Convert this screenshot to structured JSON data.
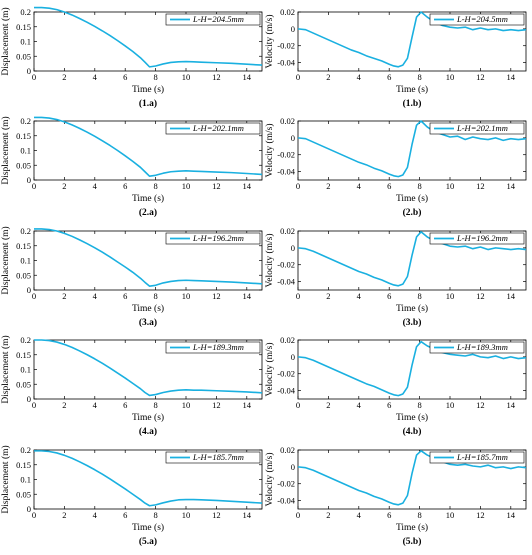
{
  "figure": {
    "panels": [
      {
        "id": "1.a",
        "caption": "(1.a)"
      },
      {
        "id": "1.b",
        "caption": "(1.b)"
      },
      {
        "id": "2.a",
        "caption": "(2.a)"
      },
      {
        "id": "2.b",
        "caption": "(2.b)"
      },
      {
        "id": "3.a",
        "caption": "(3.a)"
      },
      {
        "id": "3.b",
        "caption": "(3.b)"
      },
      {
        "id": "4.a",
        "caption": "(4.a)"
      },
      {
        "id": "4.b",
        "caption": "(4.b)"
      },
      {
        "id": "5.a",
        "caption": "(5.a)"
      },
      {
        "id": "5.b",
        "caption": "(5.b)"
      }
    ]
  },
  "colors": {
    "series": "#1ab0e0",
    "axis": "#000000",
    "background": "#ffffff"
  },
  "chart_data": [
    {
      "panel": "1.a",
      "type": "line",
      "xlabel": "Time (s)",
      "ylabel": "Displacement (m)",
      "xlim": [
        0,
        15
      ],
      "ylim": [
        0,
        0.2
      ],
      "xticks": [
        "0",
        "2",
        "4",
        "6",
        "8",
        "10",
        "12",
        "14"
      ],
      "yticks": [
        "0",
        "0.05",
        "0.1",
        "0.15",
        "0.2"
      ],
      "legend": {
        "placement": "top-right",
        "entries": [
          "L-H=204.5mm"
        ]
      },
      "grid": false,
      "series": [
        {
          "name": "L-H=204.5mm",
          "x": [
            0,
            0.5,
            1,
            1.5,
            2,
            2.5,
            3,
            3.5,
            4,
            4.5,
            5,
            5.5,
            6,
            6.5,
            7,
            7.3,
            7.6,
            8,
            8.5,
            9,
            9.5,
            10,
            10.5,
            11,
            12,
            13,
            14,
            15
          ],
          "y": [
            0.215,
            0.215,
            0.213,
            0.208,
            0.2,
            0.19,
            0.178,
            0.165,
            0.151,
            0.136,
            0.12,
            0.103,
            0.085,
            0.066,
            0.045,
            0.03,
            0.014,
            0.017,
            0.024,
            0.029,
            0.031,
            0.032,
            0.031,
            0.03,
            0.028,
            0.026,
            0.023,
            0.02
          ]
        }
      ]
    },
    {
      "panel": "1.b",
      "type": "line",
      "xlabel": "Time (s)",
      "ylabel": "Velocity (m/s)",
      "xlim": [
        0,
        15
      ],
      "ylim": [
        -0.05,
        0.02
      ],
      "xticks": [
        "0",
        "2",
        "4",
        "6",
        "8",
        "10",
        "12",
        "14"
      ],
      "yticks": [
        "-0.04",
        "-0.02",
        "0",
        "0.02"
      ],
      "legend": {
        "placement": "top-right",
        "entries": [
          "L-H=204.5mm"
        ]
      },
      "grid": false,
      "series": [
        {
          "name": "L-H=204.5mm",
          "x": [
            0,
            0.5,
            1,
            1.5,
            2,
            2.5,
            3,
            3.5,
            4,
            4.5,
            5,
            5.5,
            6,
            6.3,
            6.6,
            6.9,
            7.2,
            7.5,
            7.8,
            8.1,
            8.5,
            9,
            9.5,
            10,
            10.5,
            11,
            11.5,
            12,
            12.5,
            13,
            13.5,
            14,
            14.5,
            15
          ],
          "y": [
            0,
            -0.001,
            -0.005,
            -0.009,
            -0.013,
            -0.017,
            -0.021,
            -0.025,
            -0.028,
            -0.032,
            -0.035,
            -0.038,
            -0.042,
            -0.044,
            -0.045,
            -0.043,
            -0.035,
            -0.01,
            0.014,
            0.02,
            0.014,
            0.008,
            0.004,
            0.002,
            0.001,
            0.002,
            -0.001,
            0.001,
            -0.001,
            0,
            -0.002,
            -0.001,
            -0.002,
            -0.001
          ]
        }
      ]
    },
    {
      "panel": "2.a",
      "type": "line",
      "xlabel": "Time (s)",
      "ylabel": "Displacement (m)",
      "xlim": [
        0,
        15
      ],
      "ylim": [
        0,
        0.2
      ],
      "xticks": [
        "0",
        "2",
        "4",
        "6",
        "8",
        "10",
        "12",
        "14"
      ],
      "yticks": [
        "0",
        "0.05",
        "0.1",
        "0.15",
        "0.2"
      ],
      "legend": {
        "placement": "top-right",
        "entries": [
          "L-H=202.1mm"
        ]
      },
      "grid": false,
      "series": [
        {
          "name": "L-H=202.1mm",
          "x": [
            0,
            0.5,
            1,
            1.5,
            2,
            2.5,
            3,
            3.5,
            4,
            4.5,
            5,
            5.5,
            6,
            6.5,
            7,
            7.3,
            7.6,
            8,
            8.5,
            9,
            9.5,
            10,
            10.5,
            11,
            12,
            13,
            14,
            15
          ],
          "y": [
            0.212,
            0.212,
            0.21,
            0.205,
            0.197,
            0.187,
            0.175,
            0.162,
            0.148,
            0.133,
            0.117,
            0.1,
            0.082,
            0.063,
            0.043,
            0.028,
            0.013,
            0.016,
            0.023,
            0.028,
            0.03,
            0.031,
            0.03,
            0.029,
            0.027,
            0.025,
            0.022,
            0.019
          ]
        }
      ]
    },
    {
      "panel": "2.b",
      "type": "line",
      "xlabel": "Time (s)",
      "ylabel": "Velocity (m/s)",
      "xlim": [
        0,
        15
      ],
      "ylim": [
        -0.05,
        0.02
      ],
      "xticks": [
        "0",
        "2",
        "4",
        "6",
        "8",
        "10",
        "12",
        "14"
      ],
      "yticks": [
        "-0.04",
        "-0.02",
        "0",
        "0.02"
      ],
      "legend": {
        "placement": "top-right",
        "entries": [
          "L-H=202.1mm"
        ]
      },
      "grid": false,
      "series": [
        {
          "name": "L-H=202.1mm",
          "x": [
            0,
            0.5,
            1,
            1.5,
            2,
            2.5,
            3,
            3.5,
            4,
            4.5,
            5,
            5.5,
            6,
            6.3,
            6.6,
            6.9,
            7.2,
            7.5,
            7.8,
            8.1,
            8.5,
            9,
            9.5,
            10,
            10.5,
            11,
            11.5,
            12,
            12.5,
            13,
            13.5,
            14,
            14.5,
            15
          ],
          "y": [
            0,
            -0.001,
            -0.005,
            -0.009,
            -0.013,
            -0.017,
            -0.021,
            -0.025,
            -0.029,
            -0.032,
            -0.036,
            -0.039,
            -0.043,
            -0.045,
            -0.046,
            -0.044,
            -0.035,
            -0.008,
            0.015,
            0.02,
            0.013,
            0.007,
            0.004,
            0.001,
            0.002,
            -0.002,
            0.001,
            -0.001,
            -0.002,
            0,
            -0.003,
            -0.001,
            -0.002,
            -0.001
          ]
        }
      ]
    },
    {
      "panel": "3.a",
      "type": "line",
      "xlabel": "Time (s)",
      "ylabel": "Displacement (m)",
      "xlim": [
        0,
        15
      ],
      "ylim": [
        0,
        0.2
      ],
      "xticks": [
        "0",
        "2",
        "4",
        "6",
        "8",
        "10",
        "12",
        "14"
      ],
      "yticks": [
        "0",
        "0.05",
        "0.1",
        "0.15",
        "0.2"
      ],
      "legend": {
        "placement": "top-right",
        "entries": [
          "L-H=196.2mm"
        ]
      },
      "grid": false,
      "series": [
        {
          "name": "L-H=196.2mm",
          "x": [
            0,
            0.5,
            1,
            1.5,
            2,
            2.5,
            3,
            3.5,
            4,
            4.5,
            5,
            5.5,
            6,
            6.5,
            7,
            7.3,
            7.6,
            8,
            8.5,
            9,
            9.5,
            10,
            10.5,
            11,
            12,
            13,
            14,
            15
          ],
          "y": [
            0.207,
            0.207,
            0.205,
            0.2,
            0.192,
            0.182,
            0.17,
            0.157,
            0.143,
            0.128,
            0.112,
            0.095,
            0.078,
            0.06,
            0.04,
            0.026,
            0.013,
            0.016,
            0.024,
            0.029,
            0.032,
            0.033,
            0.032,
            0.031,
            0.029,
            0.027,
            0.024,
            0.021
          ]
        }
      ]
    },
    {
      "panel": "3.b",
      "type": "line",
      "xlabel": "Time (s)",
      "ylabel": "Velocity (m/s)",
      "xlim": [
        0,
        15
      ],
      "ylim": [
        -0.05,
        0.02
      ],
      "xticks": [
        "0",
        "2",
        "4",
        "6",
        "8",
        "10",
        "12",
        "14"
      ],
      "yticks": [
        "-0.04",
        "-0.02",
        "0",
        "0.02"
      ],
      "legend": {
        "placement": "top-right",
        "entries": [
          "L-H=196.2mm"
        ]
      },
      "grid": false,
      "series": [
        {
          "name": "L-H=196.2mm",
          "x": [
            0,
            0.5,
            1,
            1.5,
            2,
            2.5,
            3,
            3.5,
            4,
            4.5,
            5,
            5.5,
            6,
            6.3,
            6.6,
            6.9,
            7.2,
            7.5,
            7.8,
            8.1,
            8.5,
            9,
            9.5,
            10,
            10.5,
            11,
            11.5,
            12,
            12.5,
            13,
            13.5,
            14,
            14.5,
            15
          ],
          "y": [
            0,
            -0.001,
            -0.004,
            -0.008,
            -0.012,
            -0.016,
            -0.02,
            -0.024,
            -0.028,
            -0.031,
            -0.035,
            -0.038,
            -0.042,
            -0.044,
            -0.045,
            -0.043,
            -0.034,
            -0.009,
            0.013,
            0.019,
            0.013,
            0.008,
            0.005,
            0.002,
            0.001,
            0.002,
            -0.001,
            0.001,
            -0.002,
            0,
            -0.001,
            -0.002,
            -0.001,
            -0.002
          ]
        }
      ]
    },
    {
      "panel": "4.a",
      "type": "line",
      "xlabel": "Time (s)",
      "ylabel": "Displacement (m)",
      "xlim": [
        0,
        15
      ],
      "ylim": [
        0,
        0.2
      ],
      "xticks": [
        "0",
        "2",
        "4",
        "6",
        "8",
        "10",
        "12",
        "14"
      ],
      "yticks": [
        "0",
        "0.05",
        "0.1",
        "0.15",
        "0.2"
      ],
      "legend": {
        "placement": "top-right",
        "entries": [
          "L-H=189.3mm"
        ]
      },
      "grid": false,
      "series": [
        {
          "name": "L-H=189.3mm",
          "x": [
            0,
            0.5,
            1,
            1.5,
            2,
            2.5,
            3,
            3.5,
            4,
            4.5,
            5,
            5.5,
            6,
            6.5,
            7,
            7.3,
            7.6,
            8,
            8.5,
            9,
            9.5,
            10,
            10.5,
            11,
            12,
            13,
            14,
            15
          ],
          "y": [
            0.2,
            0.2,
            0.198,
            0.193,
            0.185,
            0.175,
            0.163,
            0.15,
            0.136,
            0.121,
            0.105,
            0.088,
            0.071,
            0.053,
            0.035,
            0.022,
            0.012,
            0.015,
            0.022,
            0.027,
            0.03,
            0.031,
            0.03,
            0.03,
            0.028,
            0.026,
            0.024,
            0.021
          ]
        }
      ]
    },
    {
      "panel": "4.b",
      "type": "line",
      "xlabel": "Time (s)",
      "ylabel": "Velocity (m/s)",
      "xlim": [
        0,
        15
      ],
      "ylim": [
        -0.05,
        0.02
      ],
      "xticks": [
        "0",
        "2",
        "4",
        "6",
        "8",
        "10",
        "12",
        "14"
      ],
      "yticks": [
        "-0.04",
        "-0.02",
        "0",
        "0.02"
      ],
      "legend": {
        "placement": "top-right",
        "entries": [
          "L-H=189.3mm"
        ]
      },
      "grid": false,
      "series": [
        {
          "name": "L-H=189.3mm",
          "x": [
            0,
            0.5,
            1,
            1.5,
            2,
            2.5,
            3,
            3.5,
            4,
            4.5,
            5,
            5.5,
            6,
            6.3,
            6.6,
            6.9,
            7.2,
            7.5,
            7.8,
            8.1,
            8.5,
            9,
            9.5,
            10,
            10.5,
            11,
            11.5,
            12,
            12.5,
            13,
            13.5,
            14,
            14.5,
            15
          ],
          "y": [
            0,
            -0.001,
            -0.004,
            -0.008,
            -0.012,
            -0.016,
            -0.02,
            -0.024,
            -0.028,
            -0.032,
            -0.035,
            -0.039,
            -0.043,
            -0.045,
            -0.046,
            -0.044,
            -0.036,
            -0.01,
            0.012,
            0.018,
            0.013,
            0.009,
            0.005,
            0.003,
            0.002,
            0.001,
            0.003,
            0,
            -0.001,
            0.001,
            -0.002,
            0,
            -0.002,
            -0.001
          ]
        }
      ]
    },
    {
      "panel": "5.a",
      "type": "line",
      "xlabel": "Time (s)",
      "ylabel": "Displacement (m)",
      "xlim": [
        0,
        15
      ],
      "ylim": [
        0,
        0.2
      ],
      "xticks": [
        "0",
        "2",
        "4",
        "6",
        "8",
        "10",
        "12",
        "14"
      ],
      "yticks": [
        "0",
        "0.05",
        "0.1",
        "0.15",
        "0.2"
      ],
      "legend": {
        "placement": "top-right",
        "entries": [
          "L-H=185.7mm"
        ]
      },
      "grid": false,
      "series": [
        {
          "name": "L-H=185.7mm",
          "x": [
            0,
            0.5,
            1,
            1.5,
            2,
            2.5,
            3,
            3.5,
            4,
            4.5,
            5,
            5.5,
            6,
            6.5,
            7,
            7.3,
            7.6,
            8,
            8.5,
            9,
            9.5,
            10,
            10.5,
            11,
            12,
            13,
            14,
            15
          ],
          "y": [
            0.197,
            0.197,
            0.195,
            0.19,
            0.182,
            0.172,
            0.16,
            0.147,
            0.133,
            0.118,
            0.102,
            0.085,
            0.068,
            0.05,
            0.032,
            0.02,
            0.011,
            0.014,
            0.021,
            0.027,
            0.031,
            0.032,
            0.032,
            0.031,
            0.029,
            0.026,
            0.023,
            0.02
          ]
        }
      ]
    },
    {
      "panel": "5.b",
      "type": "line",
      "xlabel": "Time (s)",
      "ylabel": "Velocity (m/s)",
      "xlim": [
        0,
        15
      ],
      "ylim": [
        -0.05,
        0.02
      ],
      "xticks": [
        "0",
        "2",
        "4",
        "6",
        "8",
        "10",
        "12",
        "14"
      ],
      "yticks": [
        "-0.04",
        "-0.02",
        "0",
        "0.02"
      ],
      "legend": {
        "placement": "top-right",
        "entries": [
          "L-H=185.7mm"
        ]
      },
      "grid": false,
      "series": [
        {
          "name": "L-H=185.7mm",
          "x": [
            0,
            0.5,
            1,
            1.5,
            2,
            2.5,
            3,
            3.5,
            4,
            4.5,
            5,
            5.5,
            6,
            6.3,
            6.6,
            6.9,
            7.2,
            7.5,
            7.8,
            8.1,
            8.5,
            9,
            9.5,
            10,
            10.5,
            11,
            11.5,
            12,
            12.5,
            13,
            13.5,
            14,
            14.5,
            15
          ],
          "y": [
            0,
            -0.001,
            -0.004,
            -0.008,
            -0.012,
            -0.016,
            -0.02,
            -0.024,
            -0.028,
            -0.031,
            -0.035,
            -0.038,
            -0.042,
            -0.044,
            -0.045,
            -0.043,
            -0.034,
            -0.008,
            0.014,
            0.019,
            0.014,
            0.01,
            0.006,
            0.003,
            0.002,
            0.003,
            0.001,
            0,
            0.002,
            -0.001,
            0,
            -0.002,
            0,
            -0.001
          ]
        }
      ]
    }
  ]
}
